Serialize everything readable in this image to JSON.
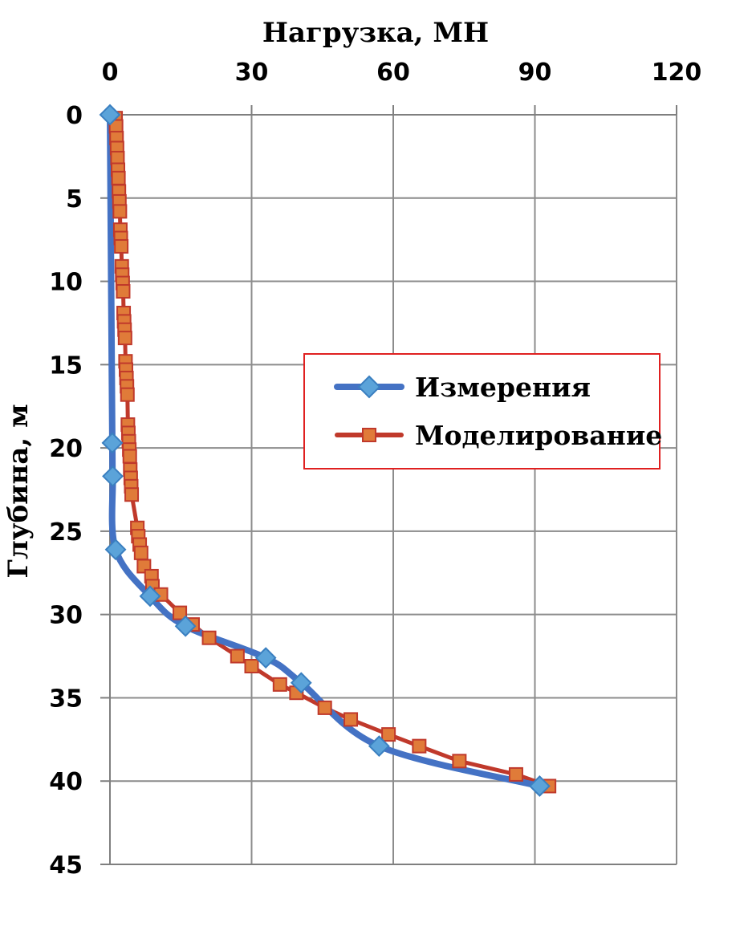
{
  "chart_data": {
    "type": "line",
    "title": "",
    "xlabel": "Нагрузка, МН",
    "ylabel": "Глубина, м",
    "x_axis_position": "top",
    "y_axis_inverted": true,
    "xlim": [
      0,
      120
    ],
    "ylim": [
      0,
      45
    ],
    "x_ticks": [
      "0",
      "30",
      "60",
      "90",
      "120"
    ],
    "y_ticks": [
      "0",
      "5",
      "10",
      "15",
      "20",
      "25",
      "30",
      "35",
      "40",
      "45"
    ],
    "grid": true,
    "legend_position": "right-center",
    "series": [
      {
        "name": "Измерения",
        "color": "#4472C4",
        "marker": "diamond",
        "marker_color": "#5BA3D9",
        "smooth": true,
        "points": [
          {
            "x": 0,
            "y": 0
          },
          {
            "x": 0.5,
            "y": 19.7
          },
          {
            "x": 0.6,
            "y": 21.7
          },
          {
            "x": 1.2,
            "y": 26.1
          },
          {
            "x": 8.5,
            "y": 28.9
          },
          {
            "x": 16,
            "y": 30.7
          },
          {
            "x": 33,
            "y": 32.6
          },
          {
            "x": 40.5,
            "y": 34.1
          },
          {
            "x": 57,
            "y": 37.9
          },
          {
            "x": 91,
            "y": 40.3
          }
        ]
      },
      {
        "name": "Моделирование",
        "color": "#C0392B",
        "marker": "square",
        "marker_color": "#E07B39",
        "smooth": false,
        "points": [
          {
            "x": 1.2,
            "y": 0.2
          },
          {
            "x": 1.3,
            "y": 0.7
          },
          {
            "x": 1.4,
            "y": 1.4
          },
          {
            "x": 1.5,
            "y": 2.0
          },
          {
            "x": 1.6,
            "y": 2.6
          },
          {
            "x": 1.7,
            "y": 3.3
          },
          {
            "x": 1.8,
            "y": 3.8
          },
          {
            "x": 1.9,
            "y": 4.6
          },
          {
            "x": 2.0,
            "y": 5.2
          },
          {
            "x": 2.1,
            "y": 5.8
          },
          {
            "x": 2.2,
            "y": 6.9
          },
          {
            "x": 2.3,
            "y": 7.4
          },
          {
            "x": 2.4,
            "y": 7.9
          },
          {
            "x": 2.5,
            "y": 9.1
          },
          {
            "x": 2.6,
            "y": 9.6
          },
          {
            "x": 2.7,
            "y": 10.1
          },
          {
            "x": 2.8,
            "y": 10.6
          },
          {
            "x": 2.9,
            "y": 11.9
          },
          {
            "x": 3.0,
            "y": 12.4
          },
          {
            "x": 3.1,
            "y": 12.9
          },
          {
            "x": 3.2,
            "y": 13.4
          },
          {
            "x": 3.3,
            "y": 14.8
          },
          {
            "x": 3.4,
            "y": 15.3
          },
          {
            "x": 3.5,
            "y": 15.8
          },
          {
            "x": 3.6,
            "y": 16.3
          },
          {
            "x": 3.7,
            "y": 16.8
          },
          {
            "x": 3.8,
            "y": 18.6
          },
          {
            "x": 3.9,
            "y": 19.1
          },
          {
            "x": 4.0,
            "y": 19.6
          },
          {
            "x": 4.1,
            "y": 20.1
          },
          {
            "x": 4.2,
            "y": 20.5
          },
          {
            "x": 4.3,
            "y": 21.3
          },
          {
            "x": 4.4,
            "y": 21.8
          },
          {
            "x": 4.5,
            "y": 22.3
          },
          {
            "x": 4.6,
            "y": 22.8
          },
          {
            "x": 5.8,
            "y": 24.8
          },
          {
            "x": 6.0,
            "y": 25.3
          },
          {
            "x": 6.3,
            "y": 25.8
          },
          {
            "x": 6.6,
            "y": 26.3
          },
          {
            "x": 7.2,
            "y": 27.1
          },
          {
            "x": 8.8,
            "y": 27.7
          },
          {
            "x": 9.0,
            "y": 28.3
          },
          {
            "x": 10.8,
            "y": 28.8
          },
          {
            "x": 14.8,
            "y": 29.9
          },
          {
            "x": 17.5,
            "y": 30.6
          },
          {
            "x": 21,
            "y": 31.4
          },
          {
            "x": 27,
            "y": 32.5
          },
          {
            "x": 30,
            "y": 33.1
          },
          {
            "x": 36,
            "y": 34.2
          },
          {
            "x": 39.5,
            "y": 34.7
          },
          {
            "x": 45.5,
            "y": 35.6
          },
          {
            "x": 51,
            "y": 36.3
          },
          {
            "x": 59,
            "y": 37.2
          },
          {
            "x": 65.5,
            "y": 37.9
          },
          {
            "x": 74,
            "y": 38.8
          },
          {
            "x": 86,
            "y": 39.6
          },
          {
            "x": 93,
            "y": 40.3
          }
        ]
      }
    ]
  }
}
